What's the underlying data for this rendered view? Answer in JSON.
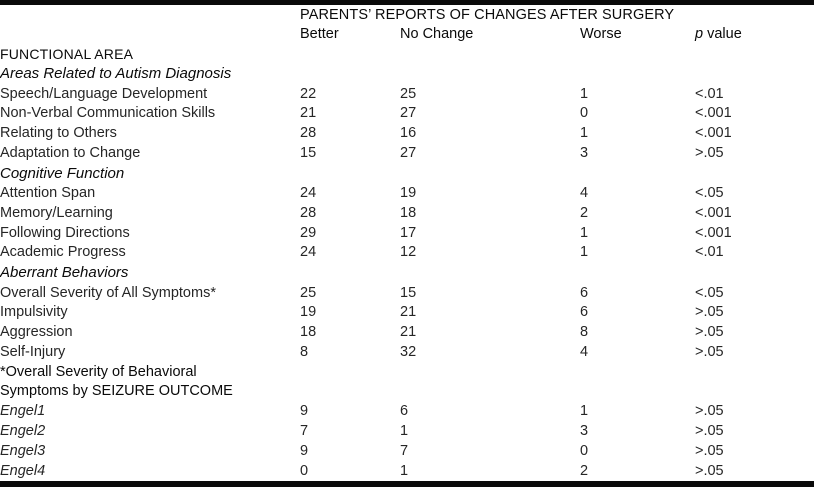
{
  "table": {
    "title": "PARENTS’ REPORTS OF CHANGES AFTER SURGERY",
    "columns": {
      "better": "Better",
      "no_change": "No Change",
      "worse": "Worse",
      "p_italic": "p",
      "p_rest": " value"
    },
    "rows": [
      {
        "type": "section-caps",
        "label": "FUNCTIONAL AREA"
      },
      {
        "type": "section-italic",
        "label": "Areas Related to Autism Diagnosis"
      },
      {
        "type": "item",
        "label": "Speech/Language Development",
        "better": "22",
        "no_change": "25",
        "worse": "1",
        "p": "<.01"
      },
      {
        "type": "item",
        "label": "Non-Verbal Communication Skills",
        "better": "21",
        "no_change": "27",
        "worse": "0",
        "p": "<.001"
      },
      {
        "type": "item",
        "label": "Relating to Others",
        "better": "28",
        "no_change": "16",
        "worse": "1",
        "p": "<.001"
      },
      {
        "type": "item",
        "label": "Adaptation to Change",
        "better": "15",
        "no_change": "27",
        "worse": "3",
        "p": ">.05"
      },
      {
        "type": "section-italic",
        "label": "Cognitive Function"
      },
      {
        "type": "item",
        "label": "Attention Span",
        "better": "24",
        "no_change": "19",
        "worse": "4",
        "p": "<.05"
      },
      {
        "type": "item",
        "label": "Memory/Learning",
        "better": "28",
        "no_change": "18",
        "worse": "2",
        "p": "<.001"
      },
      {
        "type": "item",
        "label": "Following Directions",
        "better": "29",
        "no_change": "17",
        "worse": "1",
        "p": "<.001"
      },
      {
        "type": "item",
        "label": "Academic Progress",
        "better": "24",
        "no_change": "12",
        "worse": "1",
        "p": "<.01"
      },
      {
        "type": "section-italic",
        "label": "Aberrant Behaviors"
      },
      {
        "type": "item",
        "label": "Overall Severity of All Symptoms*",
        "better": "25",
        "no_change": "15",
        "worse": "6",
        "p": "<.05"
      },
      {
        "type": "item",
        "label": "Impulsivity",
        "better": "19",
        "no_change": "21",
        "worse": "6",
        "p": ">.05"
      },
      {
        "type": "item",
        "label": "Aggression",
        "better": "18",
        "no_change": "21",
        "worse": "8",
        "p": ">.05"
      },
      {
        "type": "item",
        "label": "Self-Injury",
        "better": "8",
        "no_change": "32",
        "worse": "4",
        "p": ">.05"
      },
      {
        "type": "note",
        "label": "*Overall Severity of Behavioral"
      },
      {
        "type": "note",
        "label": "Symptoms by SEIZURE OUTCOME"
      },
      {
        "type": "engel",
        "label": "Engel1",
        "better": "9",
        "no_change": "6",
        "worse": "1",
        "p": ">.05"
      },
      {
        "type": "engel",
        "label": "Engel2",
        "better": "7",
        "no_change": "1",
        "worse": "3",
        "p": ">.05"
      },
      {
        "type": "engel",
        "label": "Engel3",
        "better": "9",
        "no_change": "7",
        "worse": "0",
        "p": ">.05"
      },
      {
        "type": "engel",
        "label": "Engel4",
        "better": "0",
        "no_change": "1",
        "worse": "2",
        "p": ">.05"
      }
    ]
  },
  "chart_data": {
    "type": "table",
    "title": "PARENTS’ REPORTS OF CHANGES AFTER SURGERY",
    "columns": [
      "FUNCTIONAL AREA",
      "Better",
      "No Change",
      "Worse",
      "p value"
    ],
    "sections": [
      {
        "section": "Areas Related to Autism Diagnosis",
        "rows": [
          [
            "Speech/Language Development",
            22,
            25,
            1,
            "<.01"
          ],
          [
            "Non-Verbal Communication Skills",
            21,
            27,
            0,
            "<.001"
          ],
          [
            "Relating to Others",
            28,
            16,
            1,
            "<.001"
          ],
          [
            "Adaptation to Change",
            15,
            27,
            3,
            ">.05"
          ]
        ]
      },
      {
        "section": "Cognitive Function",
        "rows": [
          [
            "Attention Span",
            24,
            19,
            4,
            "<.05"
          ],
          [
            "Memory/Learning",
            28,
            18,
            2,
            "<.001"
          ],
          [
            "Following Directions",
            29,
            17,
            1,
            "<.001"
          ],
          [
            "Academic Progress",
            24,
            12,
            1,
            "<.01"
          ]
        ]
      },
      {
        "section": "Aberrant Behaviors",
        "rows": [
          [
            "Overall Severity of All Symptoms*",
            25,
            15,
            6,
            "<.05"
          ],
          [
            "Impulsivity",
            19,
            21,
            6,
            ">.05"
          ],
          [
            "Aggression",
            18,
            21,
            8,
            ">.05"
          ],
          [
            "Self-Injury",
            8,
            32,
            4,
            ">.05"
          ]
        ]
      },
      {
        "section": "*Overall Severity of Behavioral Symptoms by SEIZURE OUTCOME",
        "rows": [
          [
            "Engel1",
            9,
            6,
            1,
            ">.05"
          ],
          [
            "Engel2",
            7,
            1,
            3,
            ">.05"
          ],
          [
            "Engel3",
            9,
            7,
            0,
            ">.05"
          ],
          [
            "Engel4",
            0,
            1,
            2,
            ">.05"
          ]
        ]
      }
    ]
  }
}
